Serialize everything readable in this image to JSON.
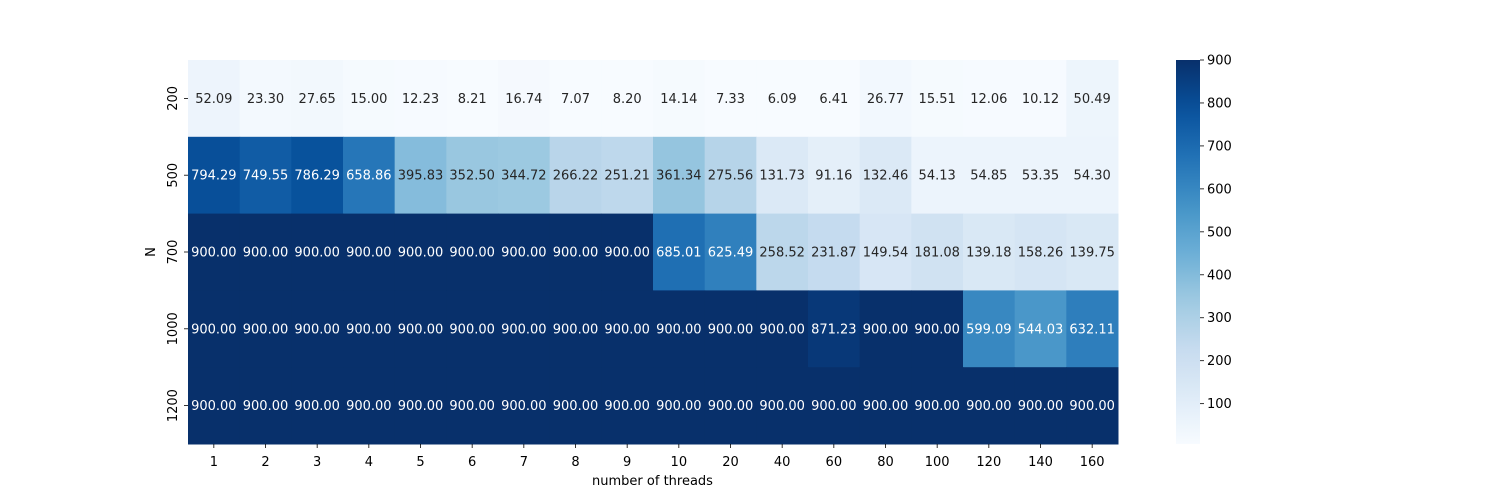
{
  "chart_data": {
    "type": "heatmap",
    "title": "",
    "xlabel": "number of threads",
    "ylabel": "N",
    "x_categories": [
      "1",
      "2",
      "3",
      "4",
      "5",
      "6",
      "7",
      "8",
      "9",
      "10",
      "20",
      "40",
      "60",
      "80",
      "100",
      "120",
      "140",
      "160"
    ],
    "y_categories": [
      "200",
      "500",
      "700",
      "1000",
      "1200"
    ],
    "values": [
      [
        52.09,
        23.3,
        27.65,
        15.0,
        12.23,
        8.21,
        16.74,
        7.07,
        8.2,
        14.14,
        7.33,
        6.09,
        6.41,
        26.77,
        15.51,
        12.06,
        10.12,
        50.49
      ],
      [
        794.29,
        749.55,
        786.29,
        658.86,
        395.83,
        352.5,
        344.72,
        266.22,
        251.21,
        361.34,
        275.56,
        131.73,
        91.16,
        132.46,
        54.13,
        54.85,
        53.35,
        54.3
      ],
      [
        900.0,
        900.0,
        900.0,
        900.0,
        900.0,
        900.0,
        900.0,
        900.0,
        900.0,
        685.01,
        625.49,
        258.52,
        231.87,
        149.54,
        181.08,
        139.18,
        158.26,
        139.75
      ],
      [
        900.0,
        900.0,
        900.0,
        900.0,
        900.0,
        900.0,
        900.0,
        900.0,
        900.0,
        900.0,
        900.0,
        900.0,
        871.23,
        900.0,
        900.0,
        599.09,
        544.03,
        632.11
      ],
      [
        900.0,
        900.0,
        900.0,
        900.0,
        900.0,
        900.0,
        900.0,
        900.0,
        900.0,
        900.0,
        900.0,
        900.0,
        900.0,
        900.0,
        900.0,
        900.0,
        900.0,
        900.0
      ]
    ],
    "value_format_decimals": 2,
    "colormap": "Blues",
    "vmin": 6.09,
    "vmax": 900,
    "colorbar_ticks": [
      100,
      200,
      300,
      400,
      500,
      600,
      700,
      800,
      900
    ],
    "grid": false,
    "legend": "colorbar-right"
  }
}
